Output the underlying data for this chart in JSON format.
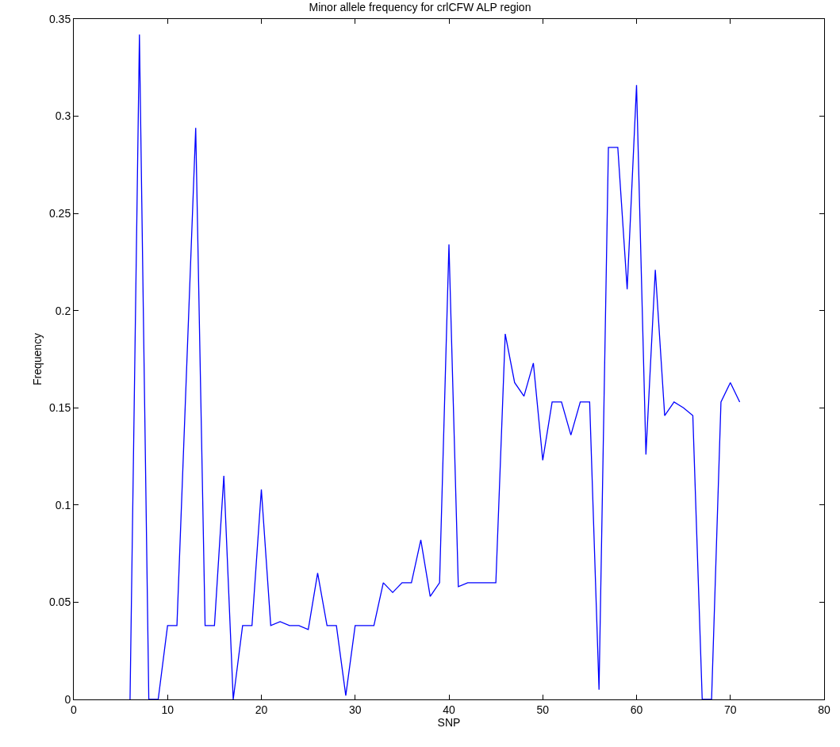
{
  "chart_data": {
    "type": "line",
    "title": "Minor allele frequency for crlCFW ALP region",
    "xlabel": "SNP",
    "ylabel": "Frequency",
    "x": [
      6,
      7,
      8,
      9,
      10,
      11,
      12,
      13,
      14,
      15,
      16,
      17,
      18,
      19,
      20,
      21,
      22,
      23,
      24,
      25,
      26,
      27,
      28,
      29,
      30,
      31,
      32,
      33,
      34,
      35,
      36,
      37,
      38,
      39,
      40,
      41,
      42,
      43,
      44,
      45,
      46,
      47,
      48,
      49,
      50,
      51,
      52,
      53,
      54,
      55,
      56,
      57,
      58,
      59,
      60,
      61,
      62,
      63,
      64,
      65,
      66,
      67,
      68,
      69,
      70,
      71
    ],
    "series": [
      {
        "color": "#0000ff",
        "values": [
          0,
          0.342,
          0,
          0,
          0.038,
          0.038,
          0.166,
          0.294,
          0.038,
          0.038,
          0.115,
          0,
          0.038,
          0.038,
          0.108,
          0.038,
          0.04,
          0.038,
          0.038,
          0.036,
          0.065,
          0.038,
          0.038,
          0.002,
          0.038,
          0.038,
          0.038,
          0.06,
          0.055,
          0.06,
          0.06,
          0.082,
          0.053,
          0.06,
          0.234,
          0.058,
          0.06,
          0.06,
          0.06,
          0.06,
          0.188,
          0.163,
          0.156,
          0.173,
          0.123,
          0.153,
          0.153,
          0.136,
          0.153,
          0.153,
          0.005,
          0.284,
          0.284,
          0.211,
          0.316,
          0.126,
          0.221,
          0.146,
          0.153,
          0.15,
          0.146,
          0,
          0,
          0.153,
          0.163,
          0.153
        ]
      }
    ],
    "xlim": [
      0,
      80
    ],
    "xticks": [
      0,
      10,
      20,
      30,
      40,
      50,
      60,
      70,
      80
    ],
    "ylim": [
      0,
      0.35
    ],
    "yticks": [
      0,
      0.05,
      0.1,
      0.15,
      0.2,
      0.25,
      0.3,
      0.35
    ],
    "marker": "none",
    "line_style": "solid"
  }
}
